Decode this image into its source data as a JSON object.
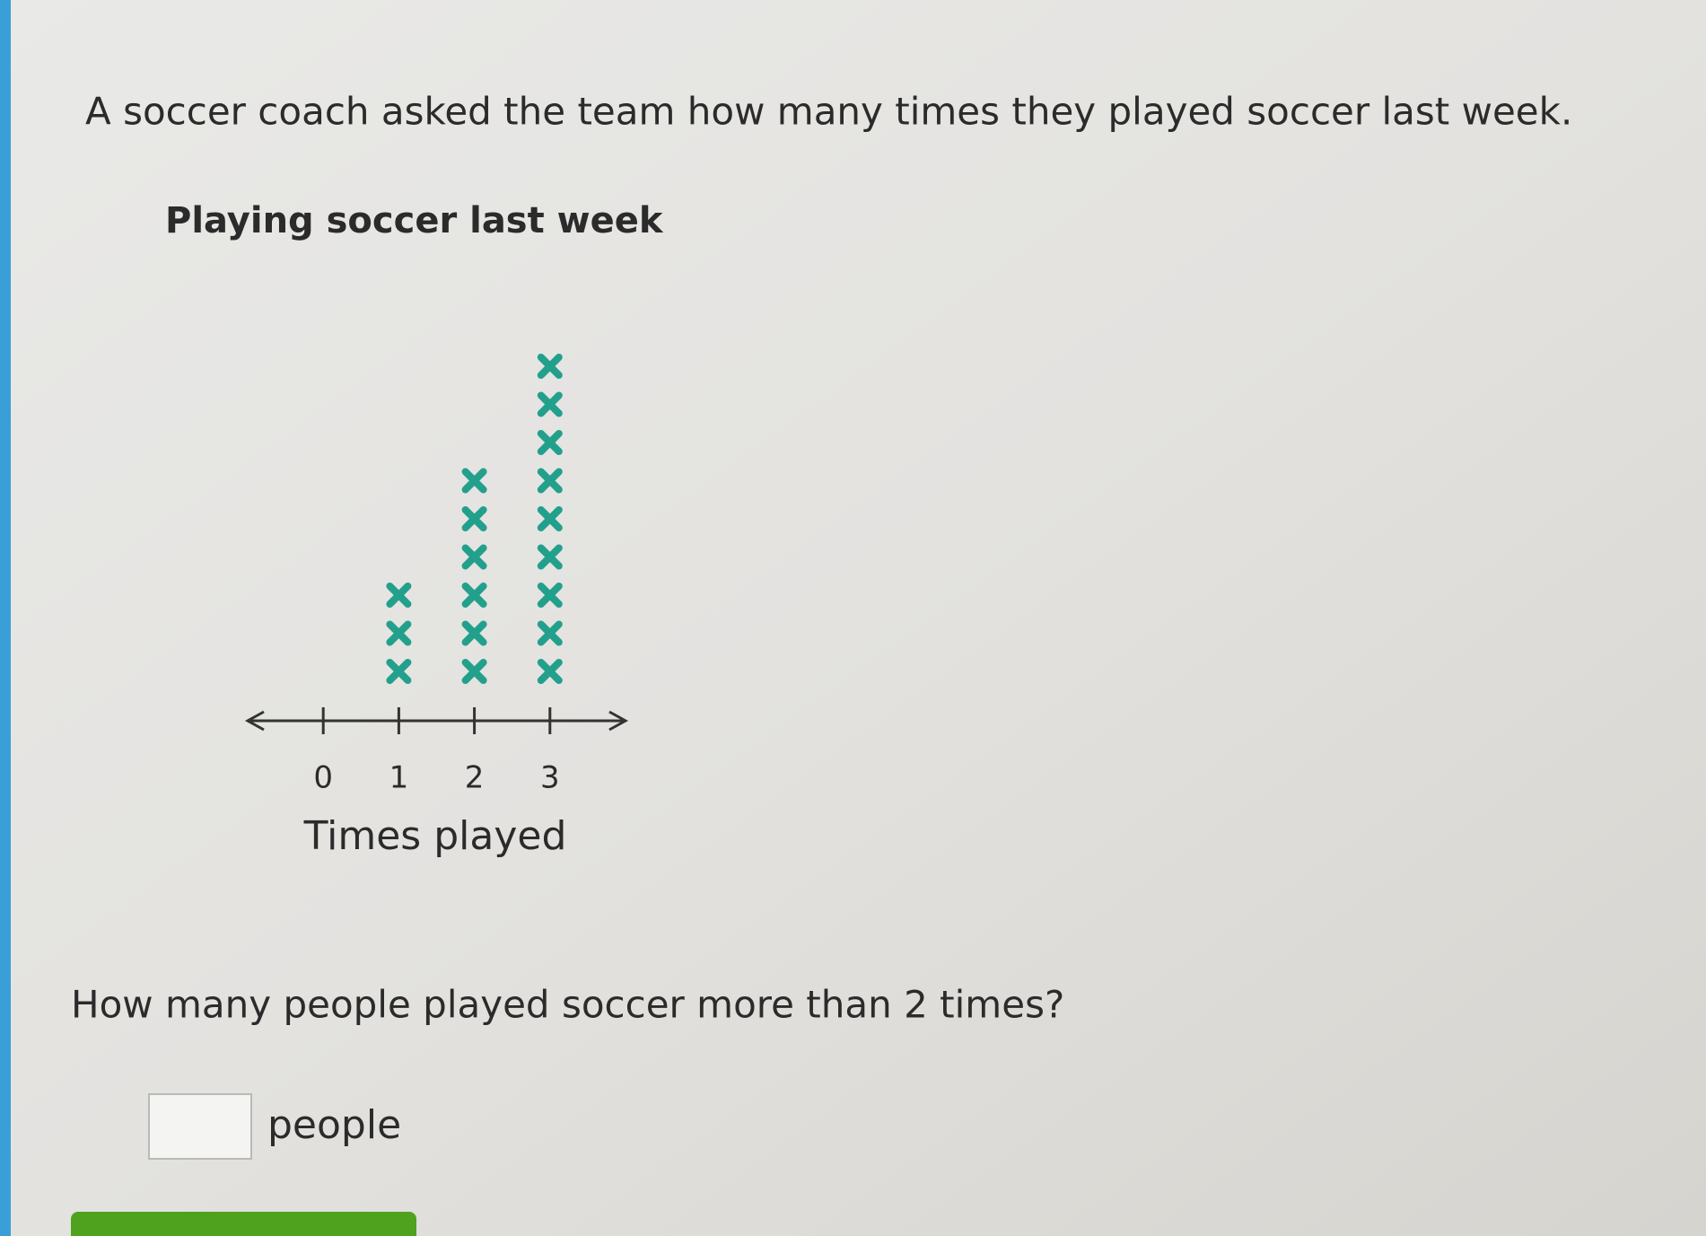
{
  "prompt": "A soccer coach asked the team how many times they played soccer last week.",
  "chart_data": {
    "type": "dot",
    "title": "Playing soccer last week",
    "x": [
      0,
      1,
      2,
      3
    ],
    "values": [
      0,
      3,
      6,
      9
    ],
    "color": "#23a08c",
    "xlim": [
      -1,
      4
    ],
    "xticks": [
      0,
      1,
      2,
      3
    ],
    "xlabel": "Times played"
  },
  "question": "How many people played soccer more than 2 times?",
  "answer": {
    "unit": "people"
  }
}
